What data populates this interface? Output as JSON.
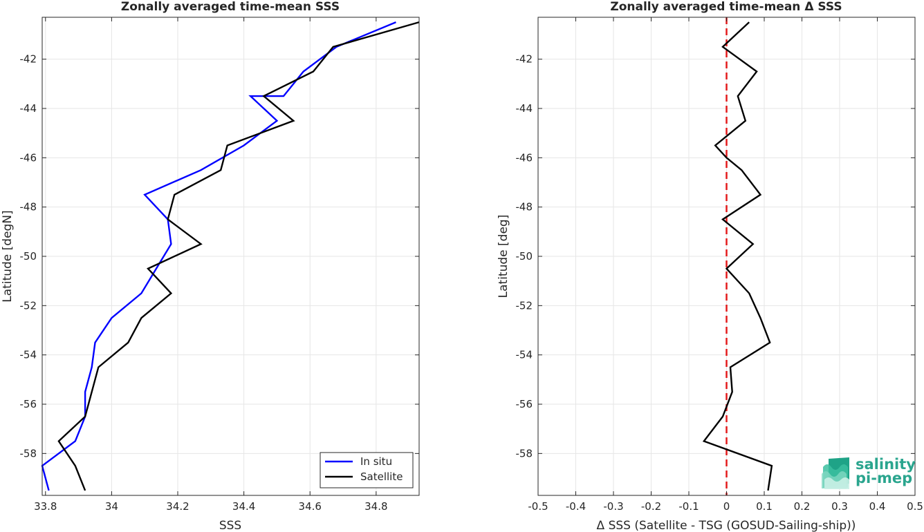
{
  "chart_data": [
    {
      "type": "line",
      "title": "Zonally averaged time-mean SSS",
      "xlabel": "SSS",
      "ylabel": "Latitude [degN]",
      "xlim": [
        33.79,
        34.93
      ],
      "ylim": [
        -59.7,
        -40.3
      ],
      "xticks": [
        33.8,
        34.0,
        34.2,
        34.4,
        34.6,
        34.8
      ],
      "xtick_labels": [
        "33.8",
        "34",
        "34.2",
        "34.4",
        "34.6",
        "34.8"
      ],
      "yticks": [
        -58,
        -56,
        -54,
        -52,
        -50,
        -48,
        -46,
        -44,
        -42
      ],
      "ytick_labels": [
        "-58",
        "-56",
        "-54",
        "-52",
        "-50",
        "-48",
        "-46",
        "-44",
        "-42"
      ],
      "grid": true,
      "legend_position": "bottom-right",
      "series": [
        {
          "name": "In situ",
          "color": "#0000ff",
          "x": [
            34.86,
            34.68,
            34.58,
            34.52,
            34.42,
            34.5,
            34.4,
            34.27,
            34.1,
            34.17,
            34.18,
            34.09,
            34.0,
            33.95,
            33.94,
            33.92,
            33.92,
            33.89,
            33.79,
            33.81
          ],
          "y": [
            -40.5,
            -41.5,
            -42.5,
            -43.5,
            -43.5,
            -44.5,
            -45.5,
            -46.5,
            -47.5,
            -48.5,
            -49.5,
            -51.5,
            -52.5,
            -53.5,
            -54.5,
            -55.5,
            -56.5,
            -57.5,
            -58.5,
            -59.5
          ]
        },
        {
          "name": "Satellite",
          "color": "#000000",
          "x": [
            34.93,
            34.67,
            34.61,
            34.46,
            34.55,
            34.35,
            34.33,
            34.19,
            34.17,
            34.27,
            34.11,
            34.18,
            34.09,
            34.05,
            33.96,
            33.92,
            33.84,
            33.89,
            33.92
          ],
          "y": [
            -40.5,
            -41.5,
            -42.5,
            -43.5,
            -44.5,
            -45.5,
            -46.5,
            -47.5,
            -48.5,
            -49.5,
            -50.5,
            -51.5,
            -52.5,
            -53.5,
            -54.5,
            -56.5,
            -57.5,
            -58.5,
            -59.5
          ]
        }
      ]
    },
    {
      "type": "line",
      "title": "Zonally averaged time-mean Δ SSS",
      "xlabel": "Δ SSS (Satellite - TSG (GOSUD-Sailing-ship))",
      "ylabel": "Latitude [deg]",
      "xlim": [
        -0.5,
        0.5
      ],
      "ylim": [
        -59.7,
        -40.3
      ],
      "xticks": [
        -0.5,
        -0.4,
        -0.3,
        -0.2,
        -0.1,
        0,
        0.1,
        0.2,
        0.3,
        0.4,
        0.5
      ],
      "xtick_labels": [
        "-0.5",
        "-0.4",
        "-0.3",
        "-0.2",
        "-0.1",
        "0",
        "0.1",
        "0.2",
        "0.3",
        "0.4",
        "0.5"
      ],
      "yticks": [
        -58,
        -56,
        -54,
        -52,
        -50,
        -48,
        -46,
        -44,
        -42
      ],
      "ytick_labels": [
        "-58",
        "-56",
        "-54",
        "-52",
        "-50",
        "-48",
        "-46",
        "-44",
        "-42"
      ],
      "grid": true,
      "reference_line": {
        "x": 0,
        "color": "#e41a1c",
        "style": "dashed"
      },
      "series": [
        {
          "color": "#000000",
          "x": [
            0.06,
            -0.01,
            0.08,
            0.03,
            0.05,
            -0.03,
            0.0,
            0.04,
            0.09,
            -0.01,
            0.07,
            0.0,
            0.06,
            0.09,
            0.115,
            0.01,
            0.015,
            -0.01,
            -0.06,
            0.12,
            0.11
          ],
          "y": [
            -40.5,
            -41.5,
            -42.5,
            -43.5,
            -44.5,
            -45.5,
            -46,
            -46.5,
            -47.5,
            -48.5,
            -49.5,
            -50.5,
            -51.5,
            -52.5,
            -53.5,
            -54.5,
            -55.5,
            -56.5,
            -57.5,
            -58.5,
            -59.5
          ]
        }
      ]
    }
  ],
  "logo": {
    "line1": "salinity",
    "line2": "pi-mep"
  }
}
